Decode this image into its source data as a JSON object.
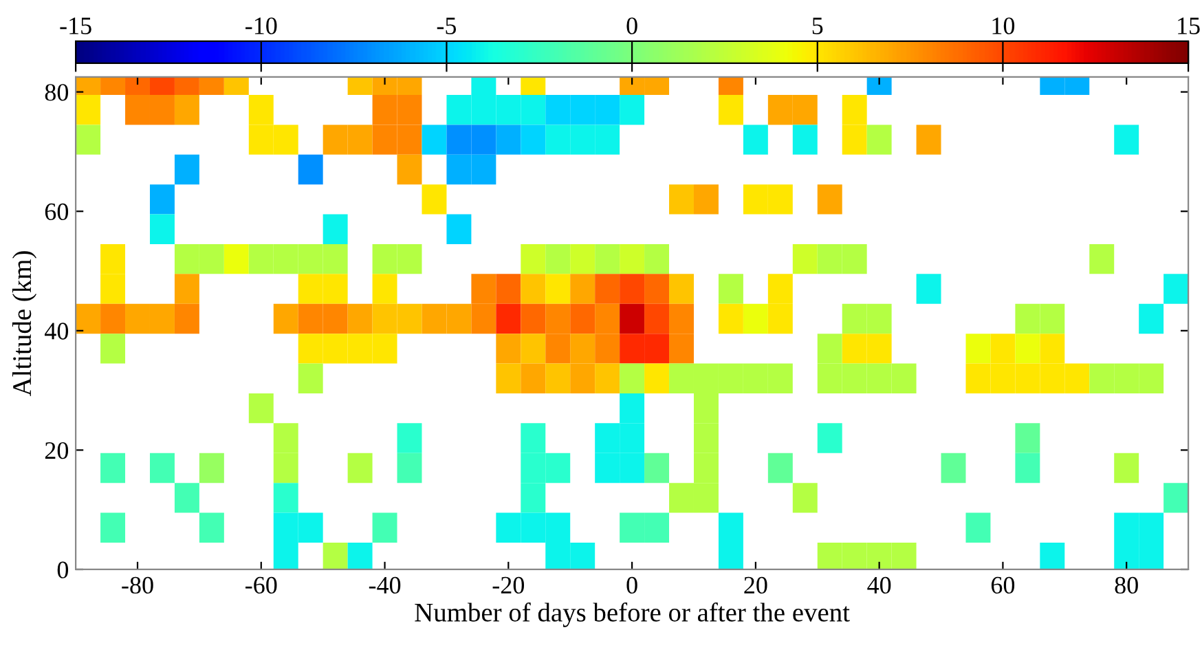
{
  "chart_data": {
    "type": "heatmap",
    "xlabel": "Number of days before or after the event",
    "ylabel": "Altitude (km)",
    "x": [
      -88,
      -84,
      -80,
      -76,
      -72,
      -68,
      -64,
      -60,
      -56,
      -52,
      -48,
      -44,
      -40,
      -36,
      -32,
      -28,
      -24,
      -20,
      -16,
      -12,
      -8,
      -4,
      0,
      4,
      8,
      12,
      16,
      20,
      24,
      28,
      32,
      36,
      40,
      44,
      48,
      52,
      56,
      60,
      64,
      68,
      72,
      76,
      80,
      84,
      88
    ],
    "y": [
      82,
      77,
      72,
      67,
      62,
      57,
      52,
      47,
      42,
      37,
      32,
      27,
      22,
      17,
      12,
      7,
      2
    ],
    "cells": [
      [
        7,
        8,
        9,
        10,
        9,
        8,
        6,
        null,
        null,
        null,
        null,
        6,
        7,
        7,
        null,
        null,
        -4,
        null,
        5,
        null,
        null,
        null,
        7,
        7,
        null,
        null,
        8,
        null,
        null,
        null,
        null,
        null,
        -6,
        null,
        null,
        null,
        null,
        null,
        null,
        -6,
        -6,
        null,
        null,
        null,
        null
      ],
      [
        5,
        null,
        8,
        8,
        7,
        null,
        null,
        5,
        null,
        null,
        null,
        null,
        8,
        8,
        null,
        -4,
        -4,
        -4,
        -4,
        -5,
        -5,
        -5,
        -4,
        null,
        null,
        null,
        5,
        null,
        7,
        7,
        null,
        5,
        null,
        null,
        null,
        null,
        null,
        null,
        null,
        null,
        null,
        null,
        null,
        null,
        null
      ],
      [
        2,
        null,
        null,
        null,
        null,
        null,
        null,
        5,
        5,
        null,
        7,
        7,
        8,
        8,
        -5,
        -7,
        -7,
        -6,
        -5,
        -4,
        -4,
        -4,
        null,
        null,
        null,
        null,
        null,
        -4,
        null,
        -4,
        null,
        5,
        2,
        null,
        7,
        null,
        null,
        null,
        null,
        null,
        null,
        null,
        -4,
        null,
        null
      ],
      [
        null,
        null,
        null,
        null,
        -6,
        null,
        null,
        null,
        null,
        -7,
        null,
        null,
        null,
        7,
        null,
        -6,
        -6,
        null,
        null,
        null,
        null,
        null,
        null,
        null,
        null,
        null,
        null,
        null,
        null,
        null,
        null,
        null,
        null,
        null,
        null,
        null,
        null,
        null,
        null,
        null,
        null,
        null,
        null,
        null,
        null
      ],
      [
        null,
        null,
        null,
        -6,
        null,
        null,
        null,
        null,
        null,
        null,
        null,
        null,
        null,
        null,
        5,
        null,
        null,
        null,
        null,
        null,
        null,
        null,
        null,
        null,
        6,
        7,
        null,
        5,
        5,
        null,
        7,
        null,
        null,
        null,
        null,
        null,
        null,
        null,
        null,
        null,
        null,
        null,
        null,
        null,
        null
      ],
      [
        null,
        null,
        null,
        -4,
        null,
        null,
        null,
        null,
        null,
        null,
        -4,
        null,
        null,
        null,
        null,
        -5,
        null,
        null,
        null,
        null,
        null,
        null,
        null,
        null,
        null,
        null,
        null,
        null,
        null,
        null,
        null,
        null,
        null,
        null,
        null,
        null,
        null,
        null,
        null,
        null,
        null,
        null,
        null,
        null,
        null
      ],
      [
        null,
        5,
        null,
        null,
        2,
        2,
        4,
        2,
        2,
        2,
        2,
        null,
        2,
        2,
        null,
        null,
        null,
        null,
        3,
        2,
        3,
        2,
        3,
        2,
        null,
        null,
        null,
        null,
        null,
        3,
        2,
        2,
        null,
        null,
        null,
        null,
        null,
        null,
        null,
        null,
        null,
        2,
        null,
        null,
        null
      ],
      [
        null,
        5,
        null,
        null,
        7,
        null,
        null,
        null,
        null,
        5,
        5,
        null,
        5,
        null,
        null,
        null,
        8,
        9,
        6,
        5,
        7,
        9,
        10,
        9,
        6,
        null,
        2,
        null,
        5,
        null,
        null,
        null,
        null,
        null,
        -4,
        null,
        null,
        null,
        null,
        null,
        null,
        null,
        null,
        null,
        -4
      ],
      [
        7,
        8,
        7,
        7,
        8,
        null,
        null,
        null,
        7,
        8,
        8,
        7,
        6,
        6,
        7,
        7,
        8,
        11,
        9,
        8,
        9,
        8,
        13,
        10,
        8,
        null,
        5,
        4,
        5,
        null,
        null,
        2,
        2,
        null,
        null,
        null,
        null,
        null,
        2,
        2,
        null,
        null,
        null,
        -4,
        null
      ],
      [
        null,
        2,
        null,
        null,
        null,
        null,
        null,
        null,
        null,
        5,
        5,
        5,
        5,
        null,
        null,
        null,
        null,
        7,
        6,
        8,
        7,
        8,
        11,
        11,
        8,
        null,
        null,
        null,
        null,
        null,
        2,
        5,
        5,
        null,
        null,
        null,
        4,
        5,
        4,
        5,
        null,
        null,
        null,
        null,
        null
      ],
      [
        null,
        null,
        null,
        null,
        null,
        null,
        null,
        null,
        null,
        2,
        null,
        null,
        null,
        null,
        null,
        null,
        null,
        6,
        7,
        6,
        7,
        6,
        2,
        5,
        2,
        2,
        2,
        2,
        2,
        null,
        2,
        2,
        2,
        2,
        null,
        null,
        5,
        5,
        5,
        5,
        5,
        2,
        2,
        2,
        null
      ],
      [
        null,
        null,
        null,
        null,
        null,
        null,
        null,
        2,
        null,
        null,
        null,
        null,
        null,
        null,
        null,
        null,
        null,
        null,
        null,
        null,
        null,
        null,
        -4,
        null,
        null,
        2,
        null,
        null,
        null,
        null,
        null,
        null,
        null,
        null,
        null,
        null,
        null,
        null,
        null,
        null,
        null,
        null,
        null,
        null,
        null
      ],
      [
        null,
        null,
        null,
        null,
        null,
        null,
        null,
        null,
        2,
        null,
        null,
        null,
        null,
        -3,
        null,
        null,
        null,
        null,
        -3,
        null,
        null,
        -4,
        -4,
        null,
        null,
        2,
        null,
        null,
        null,
        null,
        -3,
        null,
        null,
        null,
        null,
        null,
        null,
        null,
        -1,
        null,
        null,
        null,
        null,
        null,
        null
      ],
      [
        null,
        -2,
        null,
        -2,
        null,
        1,
        null,
        null,
        2,
        null,
        null,
        2,
        null,
        -2,
        null,
        null,
        null,
        null,
        -3,
        -3,
        null,
        -4,
        -4,
        -1,
        null,
        2,
        null,
        null,
        -1,
        null,
        null,
        null,
        null,
        null,
        null,
        -1,
        null,
        null,
        -2,
        null,
        null,
        null,
        2,
        null,
        null
      ],
      [
        null,
        null,
        null,
        null,
        -2,
        null,
        null,
        null,
        -3,
        null,
        null,
        null,
        null,
        null,
        null,
        null,
        null,
        null,
        -3,
        null,
        null,
        null,
        null,
        null,
        2,
        2,
        null,
        null,
        null,
        2,
        null,
        null,
        null,
        null,
        null,
        null,
        null,
        null,
        null,
        null,
        null,
        null,
        null,
        null,
        -2
      ],
      [
        null,
        -2,
        null,
        null,
        null,
        -2,
        null,
        null,
        -4,
        -4,
        null,
        null,
        -2,
        null,
        null,
        null,
        null,
        -4,
        -4,
        -4,
        null,
        null,
        -2,
        -2,
        null,
        null,
        -4,
        null,
        null,
        null,
        null,
        null,
        null,
        null,
        null,
        null,
        -2,
        null,
        null,
        null,
        null,
        null,
        -4,
        -4,
        null
      ],
      [
        null,
        null,
        null,
        null,
        null,
        null,
        null,
        null,
        -4,
        null,
        2,
        -4,
        null,
        null,
        null,
        null,
        null,
        null,
        null,
        -4,
        -4,
        null,
        null,
        null,
        null,
        null,
        -4,
        null,
        null,
        null,
        2,
        2,
        2,
        2,
        null,
        null,
        null,
        null,
        null,
        -4,
        null,
        null,
        -4,
        -4,
        null
      ]
    ],
    "clim": [
      -15,
      15
    ],
    "cticks": [
      -15,
      -10,
      -5,
      0,
      5,
      10,
      15
    ],
    "xlim": [
      -90,
      90
    ],
    "xticks": [
      -80,
      -60,
      -40,
      -20,
      0,
      20,
      40,
      60,
      80
    ],
    "ylim": [
      0,
      82.5
    ],
    "yticks": [
      0,
      20,
      40,
      60,
      80
    ],
    "grid": false
  }
}
